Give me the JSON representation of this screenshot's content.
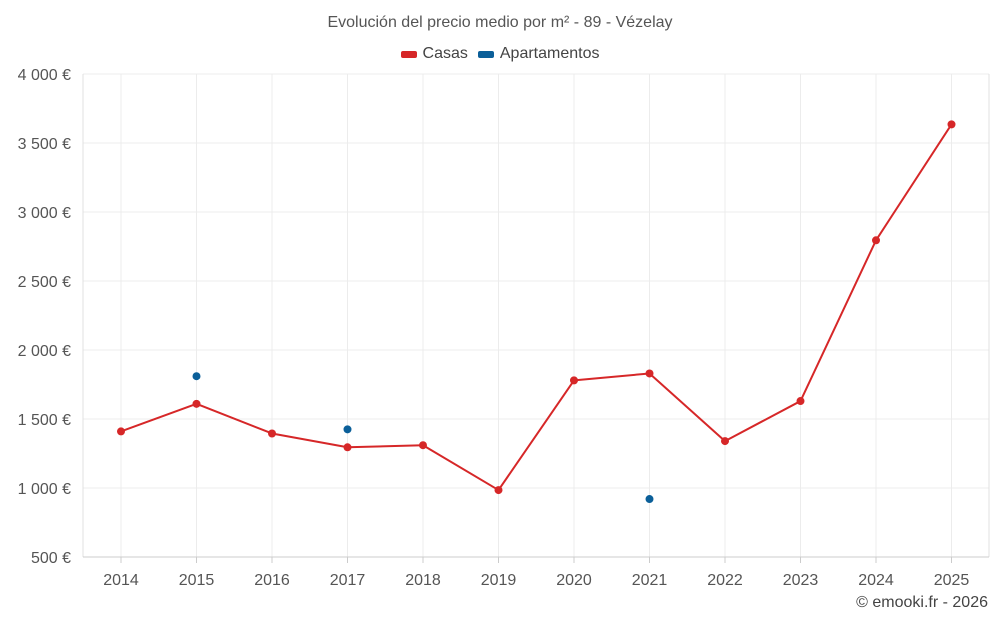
{
  "chart_data": {
    "type": "line",
    "title": "Evolución del precio medio por m² - 89 - Vézelay",
    "xlabel": "",
    "ylabel": "",
    "categories": [
      "2014",
      "2015",
      "2016",
      "2017",
      "2018",
      "2019",
      "2020",
      "2021",
      "2022",
      "2023",
      "2024",
      "2025"
    ],
    "ylim": [
      500,
      4000
    ],
    "yticks": [
      500,
      1000,
      1500,
      2000,
      2500,
      3000,
      3500,
      4000
    ],
    "ytick_labels": [
      "500 €",
      "1 000 €",
      "1 500 €",
      "2 000 €",
      "2 500 €",
      "3 000 €",
      "3 500 €",
      "4 000 €"
    ],
    "grid": true,
    "legend_position": "top-center",
    "series": [
      {
        "name": "Casas",
        "color": "#d62728",
        "style": "line-markers",
        "values": [
          1410,
          1610,
          1395,
          1295,
          1310,
          985,
          1780,
          1830,
          1340,
          1630,
          2795,
          3635
        ]
      },
      {
        "name": "Apartamentos",
        "color": "#0b5f99",
        "style": "markers",
        "values": [
          null,
          1810,
          null,
          1425,
          null,
          null,
          null,
          920,
          null,
          null,
          null,
          null
        ]
      }
    ]
  },
  "footer": {
    "copyright": "© emooki.fr - 2026"
  }
}
